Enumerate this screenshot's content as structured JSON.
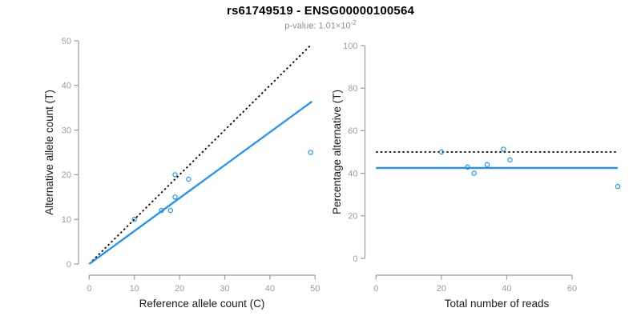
{
  "header": {
    "title": "rs61749519 - ENSG00000100564",
    "subtitle_prefix": "p-value: ",
    "subtitle_value": "1.01×10",
    "subtitle_exponent": "-2"
  },
  "colors": {
    "accent_blue": "#1E90FF",
    "identity_line_black": "#000000",
    "axis_gray": "#9b9b9b",
    "tick_label_gray": "#9b9b9b",
    "axis_title_black": "#1a1a1a",
    "subtitle_gray": "#8f8f8f"
  },
  "chart_data": [
    {
      "type": "scatter",
      "panel": "left",
      "xlabel": "Reference allele count (C)",
      "ylabel": "Alternative allele count (T)",
      "xlim": [
        0,
        52
      ],
      "ylim": [
        0,
        52
      ],
      "xticks": [
        0,
        10,
        20,
        30,
        40,
        50
      ],
      "yticks": [
        0,
        10,
        20,
        30,
        40,
        50
      ],
      "grid": false,
      "legend": null,
      "marker": "open-circle",
      "points": [
        [
          10,
          10
        ],
        [
          16,
          12
        ],
        [
          18,
          12
        ],
        [
          19,
          15
        ],
        [
          19,
          20
        ],
        [
          22,
          19
        ],
        [
          49,
          25
        ]
      ],
      "lines": [
        {
          "name": "identity-line",
          "style": "dotted",
          "color": "#000000",
          "x": [
            0,
            49
          ],
          "y": [
            0,
            49
          ]
        },
        {
          "name": "fit-line",
          "style": "solid",
          "color": "#1E90FF",
          "x": [
            0,
            49.3
          ],
          "y": [
            0,
            36.4
          ]
        }
      ]
    },
    {
      "type": "scatter",
      "panel": "right",
      "xlabel": "Total number of reads",
      "ylabel": "Percentage alternative (T)",
      "xlim": [
        0,
        77
      ],
      "ylim": [
        0,
        100
      ],
      "xticks": [
        0,
        20,
        40,
        60
      ],
      "yticks": [
        0,
        20,
        40,
        60,
        80,
        100
      ],
      "grid": false,
      "legend": null,
      "marker": "open-circle",
      "points": [
        [
          20,
          50
        ],
        [
          28,
          42.9
        ],
        [
          30,
          40
        ],
        [
          34,
          44.1
        ],
        [
          39,
          51.3
        ],
        [
          41,
          46.3
        ],
        [
          74,
          33.8
        ]
      ],
      "lines": [
        {
          "name": "expected-50pct-line",
          "style": "dotted",
          "color": "#000000",
          "x": [
            0,
            74
          ],
          "y": [
            50,
            50
          ]
        },
        {
          "name": "observed-pct-line",
          "style": "solid",
          "color": "#1E90FF",
          "x": [
            0,
            74
          ],
          "y": [
            42.5,
            42.5
          ]
        }
      ]
    }
  ]
}
